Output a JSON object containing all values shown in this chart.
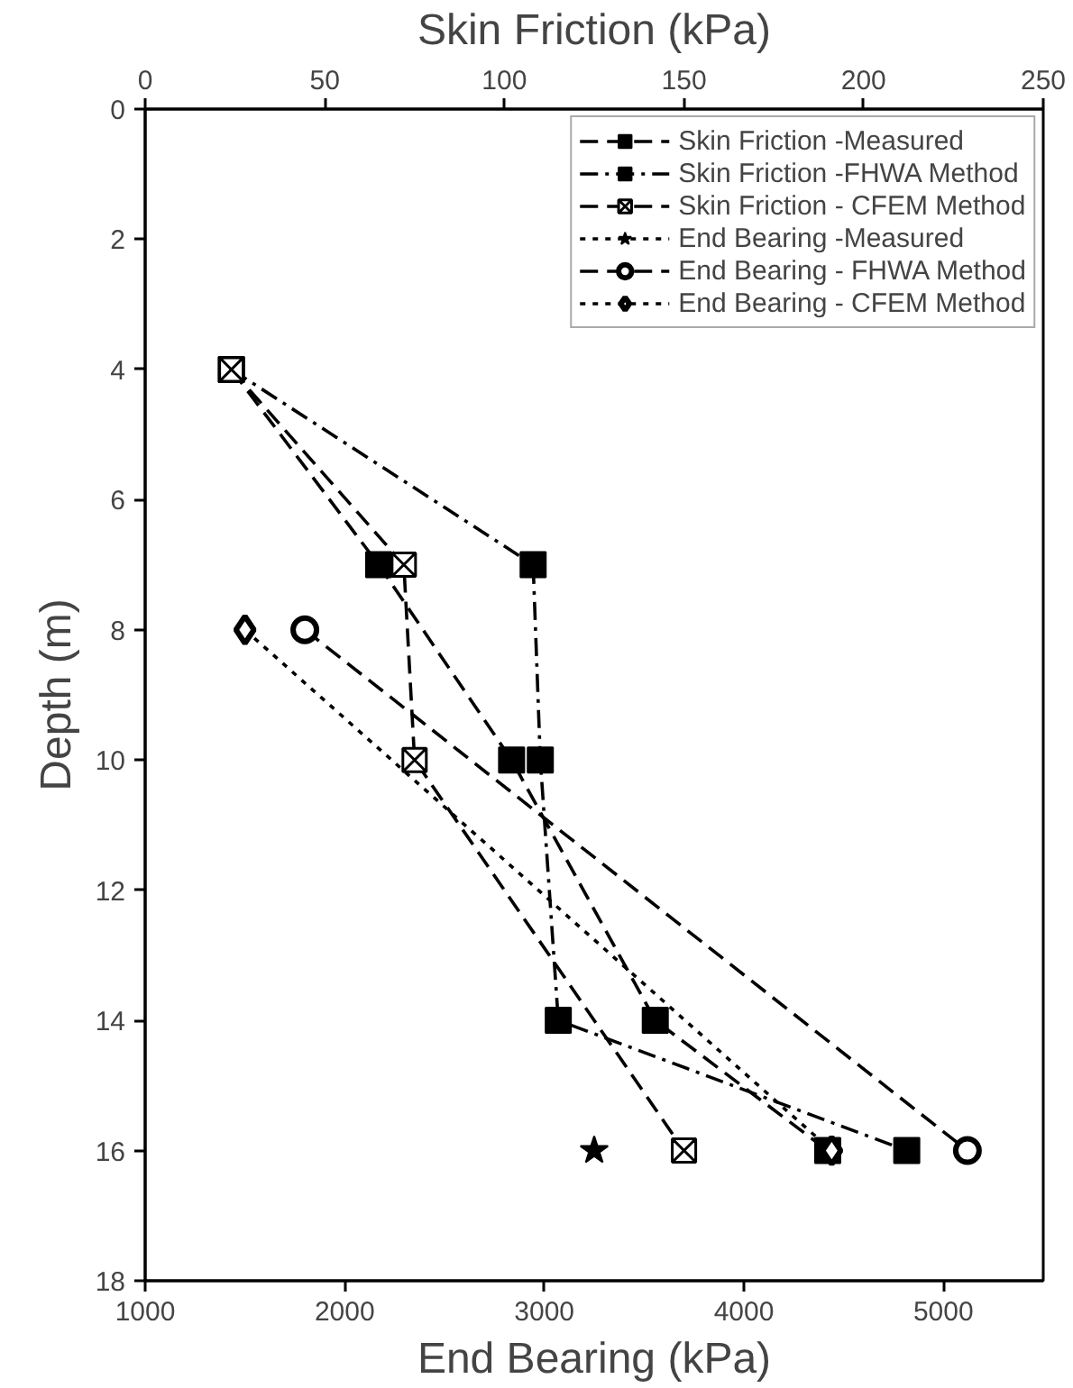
{
  "chart_data": {
    "type": "line",
    "xlabel": "End Bearing (kPa)",
    "x2label": "Skin Friction (kPa)",
    "ylabel": "Depth (m)",
    "xlim": [
      1000,
      5500
    ],
    "xticks": [
      1000,
      2000,
      3000,
      4000,
      5000
    ],
    "x2lim": [
      0,
      250
    ],
    "x2ticks": [
      0,
      50,
      100,
      150,
      200,
      250
    ],
    "ylim": [
      18,
      0
    ],
    "yticks": [
      0,
      2,
      4,
      6,
      8,
      10,
      12,
      14,
      16,
      18
    ],
    "grid": false,
    "legend": "top right",
    "series": [
      {
        "name": "Skin Friction -Measured",
        "axis": "x2",
        "color": "#000000",
        "marker": "square",
        "line_style": "dashed",
        "x": [
          24,
          65,
          102,
          142,
          190
        ],
        "values": [
          4,
          7,
          10,
          14,
          16
        ]
      },
      {
        "name": "Skin Friction -FHWA Method",
        "axis": "x2",
        "color": "#000000",
        "marker": "square",
        "line_style": "dashdot",
        "x": [
          24,
          108,
          110,
          115,
          212
        ],
        "values": [
          4,
          7,
          10,
          14,
          16
        ]
      },
      {
        "name": "Skin Friction - CFEM Method",
        "axis": "x2",
        "color": "#000000",
        "marker": "cross",
        "line_style": "dashed",
        "x": [
          24,
          72,
          75,
          150
        ],
        "values": [
          4,
          7,
          10,
          16
        ]
      },
      {
        "name": "End Bearing -Measured",
        "color": "#000000",
        "marker": "star",
        "line_style": "dotted",
        "x": [
          3250
        ],
        "values": [
          16
        ]
      },
      {
        "name": "End Bearing - FHWA Method",
        "color": "#000000",
        "marker": "circle",
        "line_style": "dashed",
        "x": [
          1800,
          5120
        ],
        "values": [
          8,
          16
        ]
      },
      {
        "name": "End Bearing - CFEM Method",
        "color": "#000000",
        "marker": "diamond",
        "line_style": "dotted",
        "x": [
          1500,
          4440
        ],
        "values": [
          8,
          16
        ]
      }
    ]
  }
}
